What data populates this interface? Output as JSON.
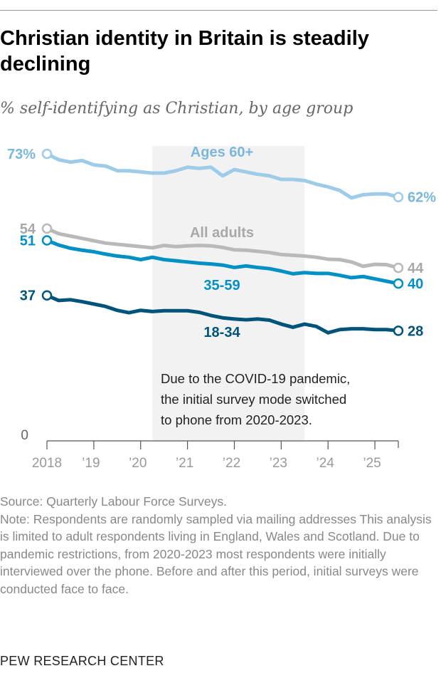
{
  "title": "Christian identity in Britain is steadily declining",
  "subtitle": "% self-identifying as Christian, by age group",
  "chart_data": {
    "type": "line",
    "xlim": [
      2018,
      2025.5
    ],
    "ylim": [
      0,
      73
    ],
    "x_tick_labels": [
      "2018",
      "’19",
      "’20",
      "’21",
      "’22",
      "’23",
      "’24",
      "’25"
    ],
    "x_ticks": [
      2018,
      2019,
      2020,
      2021,
      2022,
      2023,
      2024,
      2025
    ],
    "y_zero_label": "0",
    "x": [
      2018,
      2018.25,
      2018.5,
      2018.75,
      2019,
      2019.25,
      2019.5,
      2019.75,
      2020,
      2020.25,
      2020.5,
      2020.75,
      2021,
      2021.25,
      2021.5,
      2021.75,
      2022,
      2022.25,
      2022.5,
      2022.75,
      2023,
      2023.25,
      2023.5,
      2023.75,
      2024,
      2024.25,
      2024.5,
      2024.75,
      2025,
      2025.25,
      2025.5
    ],
    "shaded_period": {
      "start": 2020.25,
      "end": 2023.5,
      "color": "#f2f2f2"
    },
    "annotation": [
      "Due to the COVID-19 pandemic,",
      "the initial survey mode switched",
      "to phone from 2020-2023."
    ],
    "series": [
      {
        "name": "Ages 60+",
        "color": "#9dcbe8",
        "start_label": "73%",
        "end_label": "62%",
        "values": [
          73,
          71.5,
          70.9,
          71.3,
          70.2,
          69.9,
          68.7,
          68.7,
          68.4,
          68.1,
          68.1,
          68.7,
          69.6,
          69.3,
          69.6,
          67.4,
          69,
          68.4,
          67.8,
          67.4,
          66.5,
          66.5,
          66.2,
          65.3,
          64.6,
          63.7,
          61.8,
          62.6,
          62.8,
          62.8,
          62
        ]
      },
      {
        "name": "All adults",
        "color": "#b9b9b9",
        "start_label": "54",
        "end_label": "44",
        "values": [
          54,
          52.7,
          52.1,
          51.5,
          50.9,
          50.3,
          50,
          49.7,
          49.4,
          49.1,
          49.7,
          49.4,
          49.6,
          49.7,
          49.6,
          49.2,
          48.6,
          48.5,
          48.2,
          47.9,
          47.4,
          47.2,
          47,
          46.7,
          46.2,
          46.1,
          45.5,
          44.4,
          44.9,
          44.8,
          44
        ]
      },
      {
        "name": "35-59",
        "color": "#0090c3",
        "start_label": "51",
        "end_label": "40",
        "values": [
          51,
          49.8,
          49,
          48.5,
          48.1,
          47.5,
          47,
          46.7,
          46.1,
          46.7,
          46.1,
          45.8,
          45.5,
          45.2,
          45,
          44.7,
          44.1,
          44.5,
          44.1,
          43.8,
          43.2,
          42.5,
          42.8,
          42.6,
          42.6,
          42.1,
          41.5,
          41.8,
          41.2,
          40.6,
          40
        ]
      },
      {
        "name": "18-34",
        "color": "#005479",
        "start_label": "37",
        "end_label": "28",
        "values": [
          37,
          35.7,
          35.9,
          35.4,
          34.8,
          34.2,
          33.2,
          32.6,
          33.2,
          32.9,
          33.1,
          33.1,
          33.1,
          32.7,
          31.9,
          31.3,
          31,
          30.8,
          31,
          30.7,
          29.7,
          28.9,
          29.7,
          29.1,
          27.5,
          28.3,
          28.5,
          28.5,
          28.3,
          28.3,
          28
        ]
      }
    ]
  },
  "notes": {
    "source": "Source: Quarterly Labour Force Surveys.",
    "note": "Note: Respondents are randomly sampled via mailing addresses This analysis is limited to adult respondents living in England, Wales and Scotland. Due to pandemic restrictions, from 2020-2023 most respondents were initially interviewed over the phone. Before and after this period, initial surveys were conducted face to face."
  },
  "brand": "PEW RESEARCH CENTER"
}
